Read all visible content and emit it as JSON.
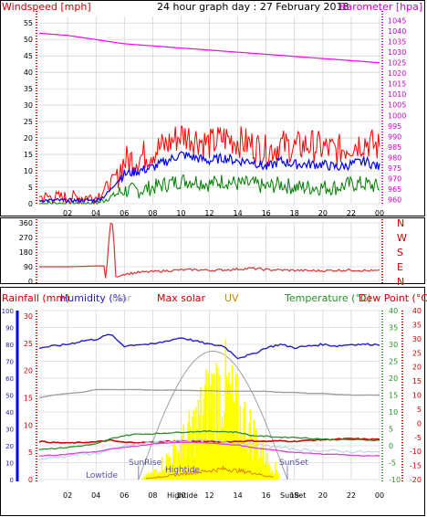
{
  "header": {
    "title": "24 hour graph day : 27 February 2018",
    "left_label": "Windspeed [mph]",
    "right_label": "Barometer [hpa]"
  },
  "colors": {
    "wind_gust": "#ff0000",
    "wind_avg": "#0000ff",
    "wind_low": "#008000",
    "barometer": "#ff00ff",
    "wind_dir": "#e03030",
    "humidity": "#2020d0",
    "max_solar": "#a0a0a0",
    "solar": "#ffff00",
    "uv": "#e08000",
    "temperature": "#2a8f2a",
    "dew_point": "#cc0000",
    "app_temp": "#e040e0",
    "rain": "#d00000"
  },
  "chart_data": [
    {
      "type": "line",
      "panel": "wind-barometer",
      "title": "24 hour graph day : 27 February 2018",
      "ylabel_left": "Windspeed [mph]",
      "ylabel_right": "Barometer [hpa]",
      "x_ticks": [
        "02",
        "04",
        "06",
        "08",
        "10",
        "12",
        "14",
        "16",
        "18",
        "20",
        "22",
        "00"
      ],
      "y_left_ticks": [
        "0",
        "5",
        "10",
        "15",
        "20",
        "25",
        "30",
        "35",
        "40",
        "45",
        "50",
        "55"
      ],
      "y_left_range": [
        0,
        57
      ],
      "y_right_ticks": [
        "960",
        "965",
        "970",
        "975",
        "980",
        "985",
        "990",
        "995",
        "1000",
        "1005",
        "1010",
        "1015",
        "1020",
        "1025",
        "1030",
        "1035",
        "1040",
        "1045"
      ],
      "y_right_range": [
        958,
        1047
      ],
      "x_hours": [
        0,
        1,
        2,
        3,
        4,
        4.5,
        5,
        5.5,
        6,
        7,
        8,
        9,
        10,
        11,
        12,
        13,
        14,
        15,
        16,
        17,
        18,
        19,
        20,
        21,
        22,
        23,
        24
      ],
      "series": [
        {
          "name": "gust",
          "values": [
            2,
            2,
            2,
            2,
            2,
            4,
            6,
            9,
            13,
            14,
            16,
            18,
            21,
            20,
            18,
            20,
            19,
            18,
            16,
            18,
            17,
            18,
            17,
            16,
            18,
            19,
            17
          ]
        },
        {
          "name": "average",
          "values": [
            1,
            1,
            1,
            1,
            1,
            2,
            4,
            7,
            9,
            10,
            11,
            13,
            15,
            14,
            13,
            14,
            13,
            13,
            11,
            13,
            12,
            12,
            12,
            11,
            12,
            13,
            11
          ]
        },
        {
          "name": "low",
          "values": [
            0,
            0,
            0,
            0,
            0,
            1,
            2,
            3,
            4,
            4,
            5,
            6,
            7,
            7,
            6,
            7,
            6,
            6,
            5,
            6,
            5,
            5,
            5,
            5,
            6,
            6,
            5
          ]
        },
        {
          "name": "barometer",
          "values": [
            1039,
            1038.5,
            1038,
            1037,
            1036,
            1035.5,
            1035,
            1034.5,
            1034,
            1033.5,
            1033,
            1032.5,
            1032,
            1031.5,
            1031,
            1030.5,
            1030,
            1029.5,
            1029,
            1028.5,
            1028,
            1027.5,
            1027,
            1026.5,
            1026,
            1025.5,
            1025
          ]
        }
      ]
    },
    {
      "type": "line",
      "panel": "wind-direction",
      "y_left_ticks": [
        "0",
        "90",
        "180",
        "270",
        "360"
      ],
      "y_left_range": [
        0,
        360
      ],
      "y_right_ticks": [
        "N",
        "W",
        "S",
        "E",
        "N"
      ],
      "x_ticks": [],
      "x_hours": [
        0,
        1,
        2,
        3,
        4,
        4.6,
        4.7,
        5.0,
        5.2,
        5.4,
        6,
        7,
        8,
        9,
        10,
        11,
        12,
        13,
        14,
        15,
        16,
        17,
        18,
        19,
        20,
        21,
        22,
        23,
        24
      ],
      "series": [
        {
          "name": "direction",
          "values": [
            90,
            90,
            90,
            92,
            95,
            95,
            0,
            360,
            350,
            30,
            45,
            55,
            60,
            65,
            70,
            72,
            68,
            70,
            75,
            80,
            72,
            70,
            68,
            66,
            65,
            68,
            70,
            66,
            64
          ]
        }
      ]
    },
    {
      "type": "line",
      "panel": "temp-humidity-solar",
      "legend": [
        "Rainfall (mm)",
        "Humidity (%)",
        "Solar",
        "Max solar",
        "UV",
        "Temperature (°C)",
        "Dew Point (°C)"
      ],
      "x_ticks": [
        "02",
        "04",
        "06",
        "08",
        "10",
        "12",
        "14",
        "16",
        "18",
        "20",
        "22",
        "00"
      ],
      "y_humidity_ticks": [
        "0",
        "10",
        "20",
        "30",
        "40",
        "50",
        "60",
        "70",
        "80",
        "90",
        "100"
      ],
      "y_rain_ticks": [
        "0",
        "5",
        "10",
        "15",
        "20",
        "25",
        "30"
      ],
      "y_temp_ticks": [
        "-10",
        "-5",
        "0",
        "5",
        "10",
        "15",
        "20",
        "25",
        "30",
        "35",
        "40"
      ],
      "y_temp_range": [
        -10,
        40
      ],
      "y_temp_left_ticks": [
        "-20",
        "-15",
        "-10",
        "-5",
        "0",
        "5",
        "10",
        "15",
        "20",
        "25",
        "30",
        "35",
        "40"
      ],
      "annotations": [
        "Lowtide",
        "SunRise",
        "Hightide",
        "SunSet"
      ],
      "x_ticks_bottom": [
        "Hightide",
        "SunSet"
      ],
      "x_hours": [
        0,
        1,
        2,
        3,
        4,
        5,
        6,
        7,
        8,
        9,
        10,
        11,
        12,
        13,
        14,
        15,
        16,
        17,
        18,
        19,
        20,
        21,
        22,
        23,
        24
      ],
      "series": [
        {
          "name": "humidity",
          "values": [
            78,
            79,
            80,
            82,
            83,
            86,
            79,
            80,
            80,
            82,
            84,
            82,
            80,
            79,
            72,
            74,
            78,
            80,
            78,
            79,
            80,
            79,
            80,
            80,
            80
          ]
        },
        {
          "name": "rainfall",
          "values": [
            7,
            6.8,
            6.7,
            6.8,
            6.9,
            7.2,
            6.8,
            6.8,
            6.8,
            7,
            7.1,
            7,
            7,
            6.9,
            7,
            7.1,
            7,
            7.1,
            7,
            7.2,
            7.3,
            7.4,
            7.5,
            7.4,
            7.4
          ]
        },
        {
          "name": "max_solar",
          "values": [
            15,
            15.5,
            15.8,
            16,
            16.5,
            16.5,
            16.5,
            16.5,
            16.4,
            16.4,
            16.4,
            16.3,
            16.3,
            16.2,
            16.2,
            16.2,
            16.2,
            16,
            16,
            15.8,
            15.8,
            15.6,
            15.5,
            15.5,
            15.5
          ]
        },
        {
          "name": "temperature",
          "values": [
            -1,
            -0.8,
            -0.5,
            0,
            0.5,
            2,
            3,
            3.5,
            3.5,
            3.8,
            4,
            4.2,
            4.3,
            4.2,
            4,
            3,
            2.8,
            2.5,
            2.5,
            2.2,
            2,
            1.8,
            1.8,
            1.7,
            1.6
          ]
        },
        {
          "name": "app_temp",
          "values": [
            -4,
            -3.5,
            -3,
            -2.5,
            -2.3,
            -1.5,
            0,
            0.5,
            1,
            1.3,
            1.5,
            1.6,
            1.5,
            1.2,
            0.8,
            0.5,
            0,
            -0.5,
            -1,
            -1.3,
            -1.5,
            -1.5,
            -1.8,
            -1.8,
            -2
          ]
        },
        {
          "name": "dew_point",
          "values": [
            -3,
            -2.8,
            -2.5,
            -2,
            -1.8,
            -1,
            -0.5,
            0,
            0.5,
            0.8,
            1,
            1,
            0.8,
            0.5,
            0.2,
            -0.5,
            -1,
            -1.5,
            -2,
            -2.2,
            -2.5,
            -2.5,
            -2.8,
            -3,
            -3
          ]
        },
        {
          "name": "solar",
          "values": [
            0,
            0,
            0,
            0,
            0,
            0,
            0,
            0,
            1,
            3,
            5,
            8,
            12,
            14,
            10,
            7,
            3,
            1,
            0,
            0,
            0,
            0,
            0,
            0,
            0
          ]
        },
        {
          "name": "uv",
          "values": [
            0,
            0,
            0,
            0,
            0,
            0,
            0,
            0,
            0.5,
            1,
            1.5,
            2,
            2.5,
            3,
            2.5,
            2,
            1,
            0.5,
            0,
            0,
            0,
            0,
            0,
            0,
            0
          ]
        }
      ]
    }
  ],
  "panel3": {
    "legend_rain": "Rainfall (mm)",
    "legend_humidity": "Humidity (%)",
    "legend_solar": "olar",
    "legend_maxsolar": "Max solar",
    "legend_uv": "UV",
    "legend_temp": "Temperature (°C)",
    "legend_dew": "Dew Point (°C)",
    "lowtide": "Lowtide",
    "sunrise": "SunRise",
    "hightide": "Hightide",
    "sunset": "SunSet",
    "bottom_hightide": "Hightide",
    "bottom_sunset": "SunSet"
  }
}
